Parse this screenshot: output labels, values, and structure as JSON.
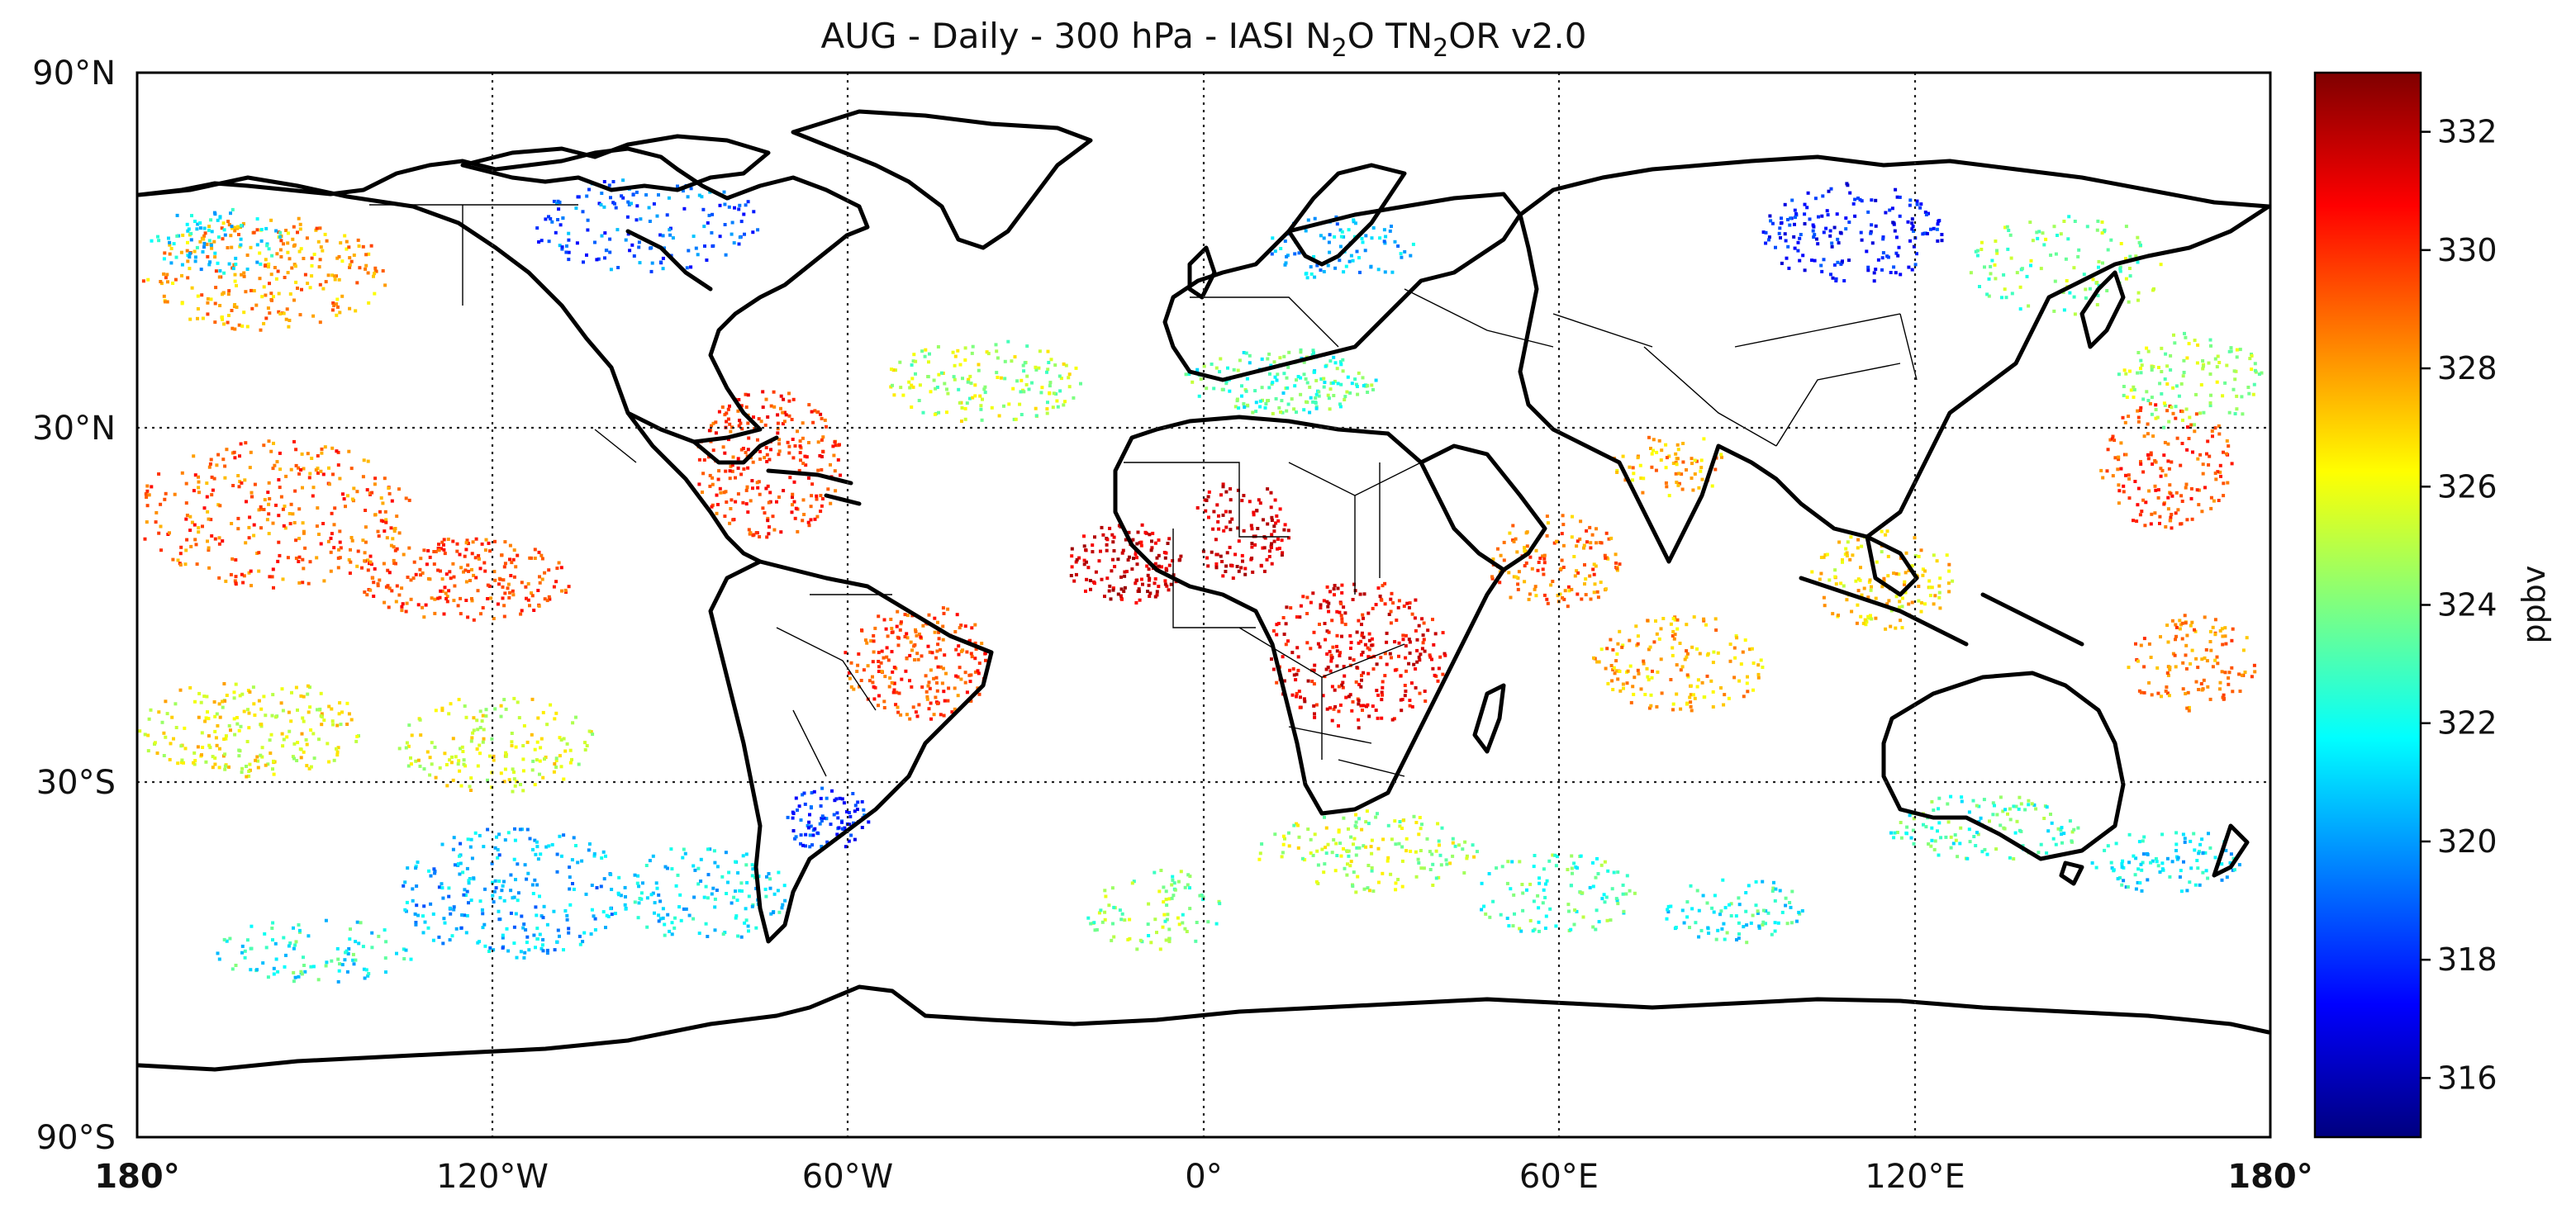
{
  "title": {
    "prefix": "AUG - Daily - 300 hPa - IASI N",
    "sub1": "2",
    "middle": "O TN",
    "sub2": "2",
    "suffix": "OR v2.0"
  },
  "axes": {
    "x_ticks": [
      "180°",
      "120°W",
      "60°W",
      "0°",
      "60°E",
      "120°E",
      "180°"
    ],
    "y_ticks": [
      "90°N",
      "30°N",
      "30°S",
      "90°S"
    ],
    "bold_x_ticks": [
      "180°"
    ]
  },
  "colorbar": {
    "label": "ppbv",
    "ticks": [
      "332",
      "330",
      "328",
      "326",
      "324",
      "322",
      "320",
      "318",
      "316"
    ],
    "range": [
      315,
      333
    ],
    "tick_values": [
      332,
      330,
      328,
      326,
      324,
      322,
      320,
      318,
      316
    ],
    "colormap": [
      "#00007f",
      "#0000ff",
      "#007fff",
      "#00ffff",
      "#7fff7f",
      "#ffff00",
      "#ff7f00",
      "#ff0000",
      "#7f0000"
    ]
  },
  "map": {
    "projection": "plate carree",
    "lon_range": [
      -180,
      180
    ],
    "lat_range": [
      -90,
      90
    ],
    "gridlines_lon": [
      -120,
      -60,
      0,
      60,
      120
    ],
    "gridlines_lat": [
      -30,
      30
    ],
    "land_color": "#ffffff",
    "coast_color": "#000000"
  }
}
